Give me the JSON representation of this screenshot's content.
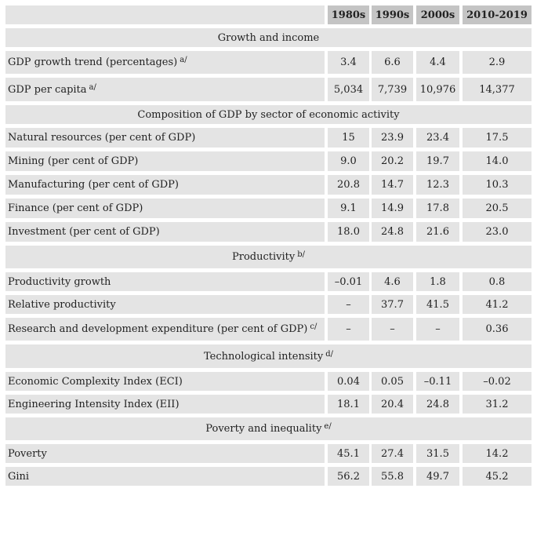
{
  "header": {
    "columns": [
      "1980s",
      "1990s",
      "2000s",
      "2010-2019"
    ]
  },
  "sections": [
    {
      "title": "Growth and income",
      "note": null,
      "rows": [
        {
          "label": "GDP growth trend (percentages)",
          "note": "a/",
          "values": [
            "3.4",
            "6.6",
            "4.4",
            "2.9"
          ]
        },
        {
          "label": "GDP per capita",
          "note": "a/",
          "values": [
            "5,034",
            "7,739",
            "10,976",
            "14,377"
          ]
        }
      ]
    },
    {
      "title": "Composition of GDP by sector of economic activity",
      "note": null,
      "rows": [
        {
          "label": "Natural resources (per cent of GDP)",
          "note": null,
          "values": [
            "15",
            "23.9",
            "23.4",
            "17.5"
          ]
        },
        {
          "label": "Mining (per cent of GDP)",
          "note": null,
          "values": [
            "9.0",
            "20.2",
            "19.7",
            "14.0"
          ]
        },
        {
          "label": "Manufacturing (per cent of GDP)",
          "note": null,
          "values": [
            "20.8",
            "14.7",
            "12.3",
            "10.3"
          ]
        },
        {
          "label": "Finance (per cent of GDP)",
          "note": null,
          "values": [
            "9.1",
            "14.9",
            "17.8",
            "20.5"
          ]
        },
        {
          "label": "Investment (per cent of GDP)",
          "note": null,
          "values": [
            "18.0",
            "24.8",
            "21.6",
            "23.0"
          ]
        }
      ]
    },
    {
      "title": "Productivity",
      "note": "b/",
      "rows": [
        {
          "label": "Productivity growth",
          "note": null,
          "values": [
            "–0.01",
            "4.6",
            "1.8",
            "0.8"
          ]
        },
        {
          "label": "Relative productivity",
          "note": null,
          "values": [
            "–",
            "37.7",
            "41.5",
            "41.2"
          ]
        },
        {
          "label": "Research and development expenditure (per cent of GDP)",
          "note": "c/",
          "values": [
            "–",
            "–",
            "–",
            "0.36"
          ]
        }
      ]
    },
    {
      "title": "Technological intensity",
      "note": "d/",
      "rows": [
        {
          "label": "Economic Complexity Index (ECI)",
          "note": null,
          "values": [
            "0.04",
            "0.05",
            "–0.11",
            "–0.02"
          ]
        },
        {
          "label": "Engineering Intensity Index (EII)",
          "note": null,
          "values": [
            "18.1",
            "20.4",
            "24.8",
            "31.2"
          ]
        }
      ]
    },
    {
      "title": "Poverty and inequality",
      "note": "e/",
      "rows": [
        {
          "label": "Poverty",
          "note": null,
          "values": [
            "45.1",
            "27.4",
            "31.5",
            "14.2"
          ]
        },
        {
          "label": "Gini",
          "note": null,
          "values": [
            "56.2",
            "55.8",
            "49.7",
            "45.2"
          ]
        }
      ]
    }
  ]
}
